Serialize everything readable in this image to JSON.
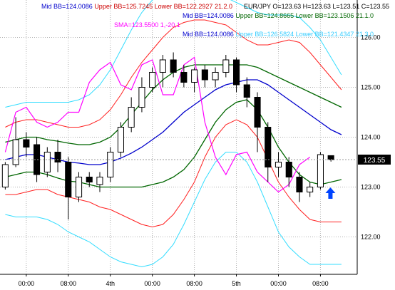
{
  "chart_data": {
    "type": "candlestick",
    "symbol_line": "EUR/JPY O=123.63 H=123.63 L=123.51 C=123.55",
    "legend": [
      {
        "text": "Mid BB=124.0086 Upper BB=125.7245 Lower BB=122.2927  21.2.0",
        "parts": [
          {
            "t": "Mid BB=124.0086 ",
            "color": "#0000cc"
          },
          {
            "t": "Upper BB=125.7245 Lower BB=122.2927",
            "color": "#cc0000"
          },
          {
            "t": "  21.2.0",
            "color": "#cc0000"
          }
        ]
      },
      {
        "text": "Mid BB=124.0086 Upper BB=124.8665 Lower BB=123.1506  21.1.0",
        "parts": [
          {
            "t": "Mid BB=124.0086 ",
            "color": "#0000cc"
          },
          {
            "t": "Upper BB=124.8665 Lower BB=123.1506",
            "color": "#006600"
          },
          {
            "t": "  21.1.0",
            "color": "#006600"
          }
        ]
      },
      {
        "text": "SMA=123.5500  1,-20,1",
        "parts": [
          {
            "t": "SMA=123.5500  1,-20,1",
            "color": "#ff00ff"
          }
        ]
      },
      {
        "text": "Mid BB=124.0086 Upper BB=126.5824 Lower BB=121.4347  21.3.0",
        "parts": [
          {
            "t": "Mid BB=124.0086 ",
            "color": "#0000cc"
          },
          {
            "t": "Upper BB=126.5824 Lower BB=121.4347",
            "color": "#33ccff"
          },
          {
            "t": "  21.3.0",
            "color": "#33ccff"
          }
        ]
      }
    ],
    "y_ticks": [
      122.0,
      123.0,
      124.0,
      125.0,
      126.0
    ],
    "y_tick_labels": [
      "122.00",
      "123.00",
      "124.00",
      "125.00",
      "126.00"
    ],
    "ylim": [
      121.25,
      126.75
    ],
    "x_tick_labels": [
      "00:00",
      "08:00",
      "4th",
      "00:00",
      "08:00",
      "5th",
      "00:00",
      "08:00"
    ],
    "x_tick_index": [
      2,
      6,
      10,
      14,
      18,
      22,
      26,
      30
    ],
    "n_bars": 34,
    "current_price": "123.55",
    "current_value": 123.55,
    "grid": true,
    "colors": {
      "mid": "#0000cc",
      "bb2": "#ff2020",
      "bb1": "#006600",
      "bb3": "#33ddff",
      "sma": "#ff00ff",
      "bull": "#ffffff",
      "bear": "#000000",
      "arrow": "#0044ff"
    },
    "candles": [
      {
        "o": 123.0,
        "h": 123.5,
        "l": 122.95,
        "c": 123.45
      },
      {
        "o": 123.45,
        "h": 124.4,
        "l": 123.4,
        "c": 123.95
      },
      {
        "o": 123.95,
        "h": 124.1,
        "l": 123.6,
        "c": 123.8
      },
      {
        "o": 123.85,
        "h": 124.0,
        "l": 123.1,
        "c": 123.25
      },
      {
        "o": 123.3,
        "h": 123.8,
        "l": 123.2,
        "c": 123.7
      },
      {
        "o": 123.7,
        "h": 123.95,
        "l": 123.3,
        "c": 123.5
      },
      {
        "o": 123.5,
        "h": 123.6,
        "l": 122.35,
        "c": 122.8
      },
      {
        "o": 122.8,
        "h": 123.3,
        "l": 122.7,
        "c": 123.2
      },
      {
        "o": 123.2,
        "h": 123.3,
        "l": 123.0,
        "c": 123.1
      },
      {
        "o": 123.05,
        "h": 123.3,
        "l": 122.9,
        "c": 123.2
      },
      {
        "o": 123.2,
        "h": 123.8,
        "l": 123.1,
        "c": 123.7
      },
      {
        "o": 123.7,
        "h": 124.3,
        "l": 123.6,
        "c": 124.2
      },
      {
        "o": 124.2,
        "h": 124.8,
        "l": 124.1,
        "c": 124.6
      },
      {
        "o": 124.6,
        "h": 125.2,
        "l": 124.5,
        "c": 125.0
      },
      {
        "o": 125.0,
        "h": 125.4,
        "l": 124.9,
        "c": 125.3
      },
      {
        "o": 125.3,
        "h": 125.65,
        "l": 125.0,
        "c": 125.55
      },
      {
        "o": 125.55,
        "h": 125.7,
        "l": 125.2,
        "c": 125.3
      },
      {
        "o": 125.3,
        "h": 125.45,
        "l": 125.0,
        "c": 125.1
      },
      {
        "o": 125.1,
        "h": 125.4,
        "l": 124.9,
        "c": 125.35
      },
      {
        "o": 125.35,
        "h": 125.45,
        "l": 125.0,
        "c": 125.15
      },
      {
        "o": 125.15,
        "h": 125.4,
        "l": 125.0,
        "c": 125.3
      },
      {
        "o": 125.3,
        "h": 125.65,
        "l": 125.2,
        "c": 125.55
      },
      {
        "o": 125.55,
        "h": 125.6,
        "l": 124.9,
        "c": 125.05
      },
      {
        "o": 125.05,
        "h": 125.2,
        "l": 124.6,
        "c": 124.8
      },
      {
        "o": 124.8,
        "h": 124.9,
        "l": 123.7,
        "c": 124.2
      },
      {
        "o": 124.2,
        "h": 124.3,
        "l": 123.1,
        "c": 123.4
      },
      {
        "o": 123.4,
        "h": 123.7,
        "l": 123.2,
        "c": 123.5
      },
      {
        "o": 123.5,
        "h": 123.6,
        "l": 123.0,
        "c": 123.2
      },
      {
        "o": 123.2,
        "h": 123.3,
        "l": 122.7,
        "c": 122.9
      },
      {
        "o": 122.9,
        "h": 123.1,
        "l": 122.8,
        "c": 123.0
      },
      {
        "o": 123.0,
        "h": 123.7,
        "l": 122.95,
        "c": 123.65
      },
      {
        "o": 123.63,
        "h": 123.63,
        "l": 123.51,
        "c": 123.55
      }
    ],
    "mid_bb": [
      123.55,
      123.6,
      123.65,
      123.65,
      123.6,
      123.55,
      123.5,
      123.48,
      123.45,
      123.45,
      123.5,
      123.58,
      123.68,
      123.8,
      123.95,
      124.1,
      124.3,
      124.5,
      124.65,
      124.8,
      124.95,
      125.05,
      125.1,
      125.15,
      125.15,
      125.05,
      124.9,
      124.75,
      124.6,
      124.45,
      124.3,
      124.15,
      124.05
    ],
    "upper1": [
      123.9,
      123.95,
      124.0,
      124.0,
      123.95,
      123.92,
      123.88,
      123.85,
      123.85,
      123.9,
      124.0,
      124.2,
      124.45,
      124.7,
      124.95,
      125.15,
      125.3,
      125.4,
      125.45,
      125.45,
      125.45,
      125.45,
      125.45,
      125.45,
      125.4,
      125.3,
      125.2,
      125.1,
      125.0,
      124.9,
      124.8,
      124.7,
      124.6
    ],
    "lower1": [
      123.2,
      123.25,
      123.3,
      123.3,
      123.25,
      123.18,
      123.12,
      123.1,
      123.05,
      123.0,
      123.0,
      123.0,
      123.0,
      123.0,
      123.05,
      123.1,
      123.2,
      123.35,
      123.6,
      123.95,
      124.3,
      124.55,
      124.7,
      124.75,
      124.55,
      124.2,
      123.8,
      123.5,
      123.25,
      123.1,
      123.05,
      123.1,
      123.15
    ],
    "upper2": [
      124.2,
      124.3,
      124.35,
      124.35,
      124.3,
      124.25,
      124.2,
      124.2,
      124.25,
      124.35,
      124.55,
      124.85,
      125.2,
      125.5,
      125.75,
      126.0,
      126.2,
      126.3,
      126.35,
      126.35,
      126.3,
      126.25,
      126.1,
      125.95,
      125.85,
      125.85,
      125.9,
      125.95,
      125.9,
      125.7,
      125.45,
      125.2,
      124.95
    ],
    "lower2": [
      122.85,
      122.85,
      122.9,
      122.95,
      122.95,
      122.85,
      122.8,
      122.75,
      122.7,
      122.6,
      122.55,
      122.45,
      122.35,
      122.25,
      122.2,
      122.25,
      122.45,
      122.75,
      123.1,
      123.6,
      124.0,
      124.25,
      124.35,
      124.25,
      124.0,
      123.55,
      123.1,
      122.8,
      122.55,
      122.35,
      122.3,
      122.3,
      122.3
    ],
    "upper3": [
      124.6,
      124.65,
      124.7,
      124.7,
      124.7,
      124.7,
      124.7,
      124.75,
      124.85,
      125.05,
      125.35,
      125.75,
      126.15,
      126.5,
      126.75,
      126.9,
      127.0,
      127.0,
      127.0,
      126.95,
      126.9,
      126.8,
      126.7,
      126.6,
      126.5,
      126.45,
      126.45,
      126.45,
      126.4,
      126.2,
      125.95,
      125.6,
      125.25
    ],
    "lower3": [
      122.45,
      122.4,
      122.4,
      122.4,
      122.35,
      122.25,
      122.1,
      122.0,
      121.9,
      121.75,
      121.6,
      121.5,
      121.45,
      121.4,
      121.45,
      121.6,
      121.85,
      122.25,
      122.7,
      123.15,
      123.5,
      123.7,
      123.7,
      123.5,
      123.1,
      122.6,
      122.1,
      121.8,
      121.6,
      121.45,
      121.45,
      121.45,
      121.45
    ],
    "sma": [
      123.7,
      124.5,
      124.6,
      124.3,
      124.2,
      124.3,
      124.5,
      124.5,
      125.1,
      125.35,
      125.5,
      125.05,
      124.95,
      125.45,
      125.55,
      124.85,
      124.85,
      125.45,
      125.6,
      124.3,
      123.6,
      123.25,
      123.65,
      123.7,
      123.3,
      123.1,
      122.9,
      123.05,
      123.45,
      123.6
    ]
  }
}
